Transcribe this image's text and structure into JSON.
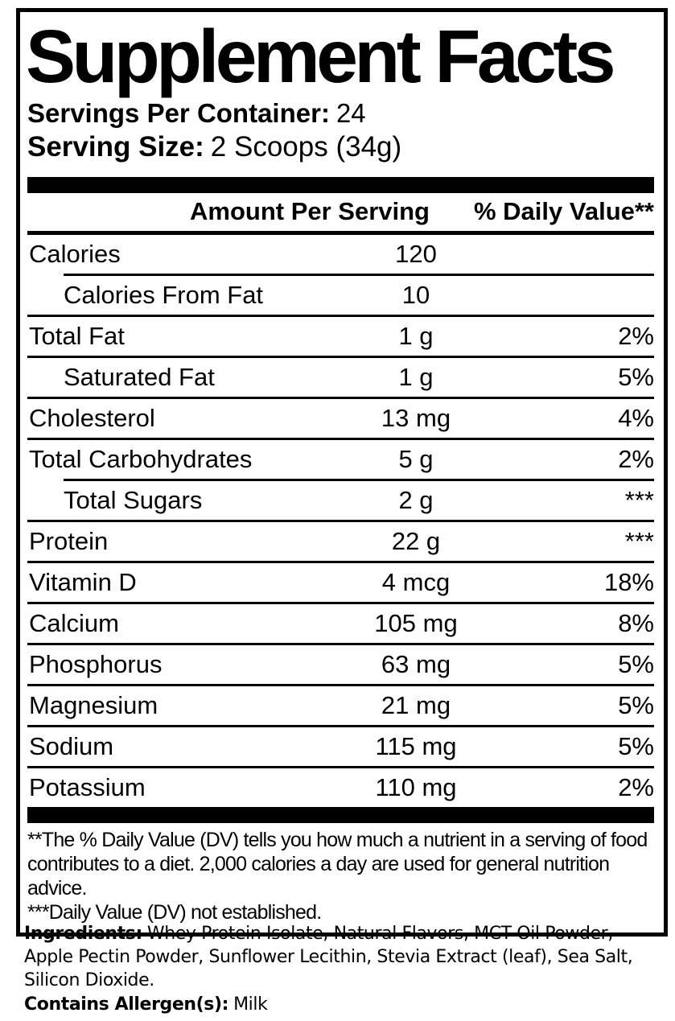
{
  "colors": {
    "text": "#000000",
    "background": "#ffffff"
  },
  "panel": {
    "title": "Supplement Facts",
    "servings_per_container_label": "Servings Per Container:",
    "servings_per_container_value": "24",
    "serving_size_label": "Serving Size:",
    "serving_size_value": "2 Scoops (34g)",
    "columns": {
      "amount": "Amount Per Serving",
      "dv": "% Daily Value**"
    },
    "rows": [
      {
        "name": "Calories",
        "amount": "120",
        "dv": "",
        "indent": false,
        "sep_below": "indent"
      },
      {
        "name": "Calories From Fat",
        "amount": "10",
        "dv": "",
        "indent": true,
        "sep_below": "full"
      },
      {
        "name": "Total Fat",
        "amount": "1 g",
        "dv": "2%",
        "indent": false,
        "sep_below": "full"
      },
      {
        "name": "Saturated Fat",
        "amount": "1 g",
        "dv": "5%",
        "indent": true,
        "sep_below": "full"
      },
      {
        "name": "Cholesterol",
        "amount": "13 mg",
        "dv": "4%",
        "indent": false,
        "sep_below": "full"
      },
      {
        "name": "Total Carbohydrates",
        "amount": "5 g",
        "dv": "2%",
        "indent": false,
        "sep_below": "indent"
      },
      {
        "name": "Total Sugars",
        "amount": "2 g",
        "dv": "***",
        "indent": true,
        "sep_below": "full"
      },
      {
        "name": "Protein",
        "amount": "22 g",
        "dv": "***",
        "indent": false,
        "sep_below": "full"
      },
      {
        "name": "Vitamin D",
        "amount": "4 mcg",
        "dv": "18%",
        "indent": false,
        "sep_below": "full"
      },
      {
        "name": "Calcium",
        "amount": "105 mg",
        "dv": "8%",
        "indent": false,
        "sep_below": "full"
      },
      {
        "name": "Phosphorus",
        "amount": "63 mg",
        "dv": "5%",
        "indent": false,
        "sep_below": "full"
      },
      {
        "name": "Magnesium",
        "amount": "21 mg",
        "dv": "5%",
        "indent": false,
        "sep_below": "full"
      },
      {
        "name": "Sodium",
        "amount": "115 mg",
        "dv": "5%",
        "indent": false,
        "sep_below": "full"
      },
      {
        "name": "Potassium",
        "amount": "110 mg",
        "dv": "2%",
        "indent": false,
        "sep_below": null
      }
    ],
    "footnotes": [
      "**The % Daily Value (DV) tells you how much a nutrient in a serving of food contributes to a diet. 2,000 calories a day are used for general nutrition advice.",
      "***Daily Value (DV) not established."
    ]
  },
  "ingredients": {
    "label": "Ingredients:",
    "value": "Whey Protein Isolate, Natural Flavors, MCT Oil Powder, Apple Pectin Powder, Sunflower Lecithin, Stevia Extract (leaf), Sea Salt, Silicon Dioxide.",
    "allergen_label": "Contains Allergen(s):",
    "allergen_value": "Milk"
  }
}
